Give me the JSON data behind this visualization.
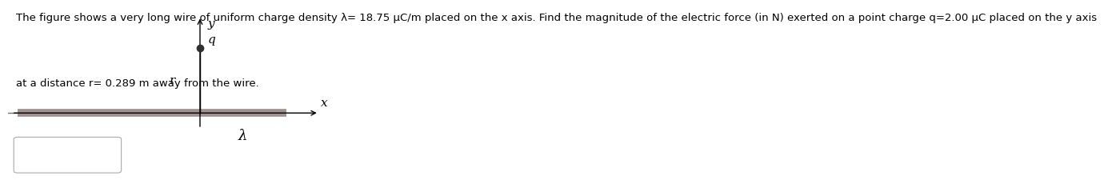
{
  "text_line1": "The figure shows a very long wire of uniform charge density λ= 18.75 μC/m placed on the x axis. Find the magnitude of the electric force (in N) exerted on a point charge q=2.00 μC placed on the y axis",
  "text_line2": "at a distance r= 0.289 m away from the wire.",
  "background_color": "#ffffff",
  "text_color": "#000000",
  "text_fontsize": 9.5,
  "wire_color": "#a09090",
  "wire_linewidth": 7,
  "label_q": "q",
  "label_r": "r",
  "label_lambda": "λ",
  "label_x": "x",
  "label_y": "y",
  "label_fontsize": 11
}
